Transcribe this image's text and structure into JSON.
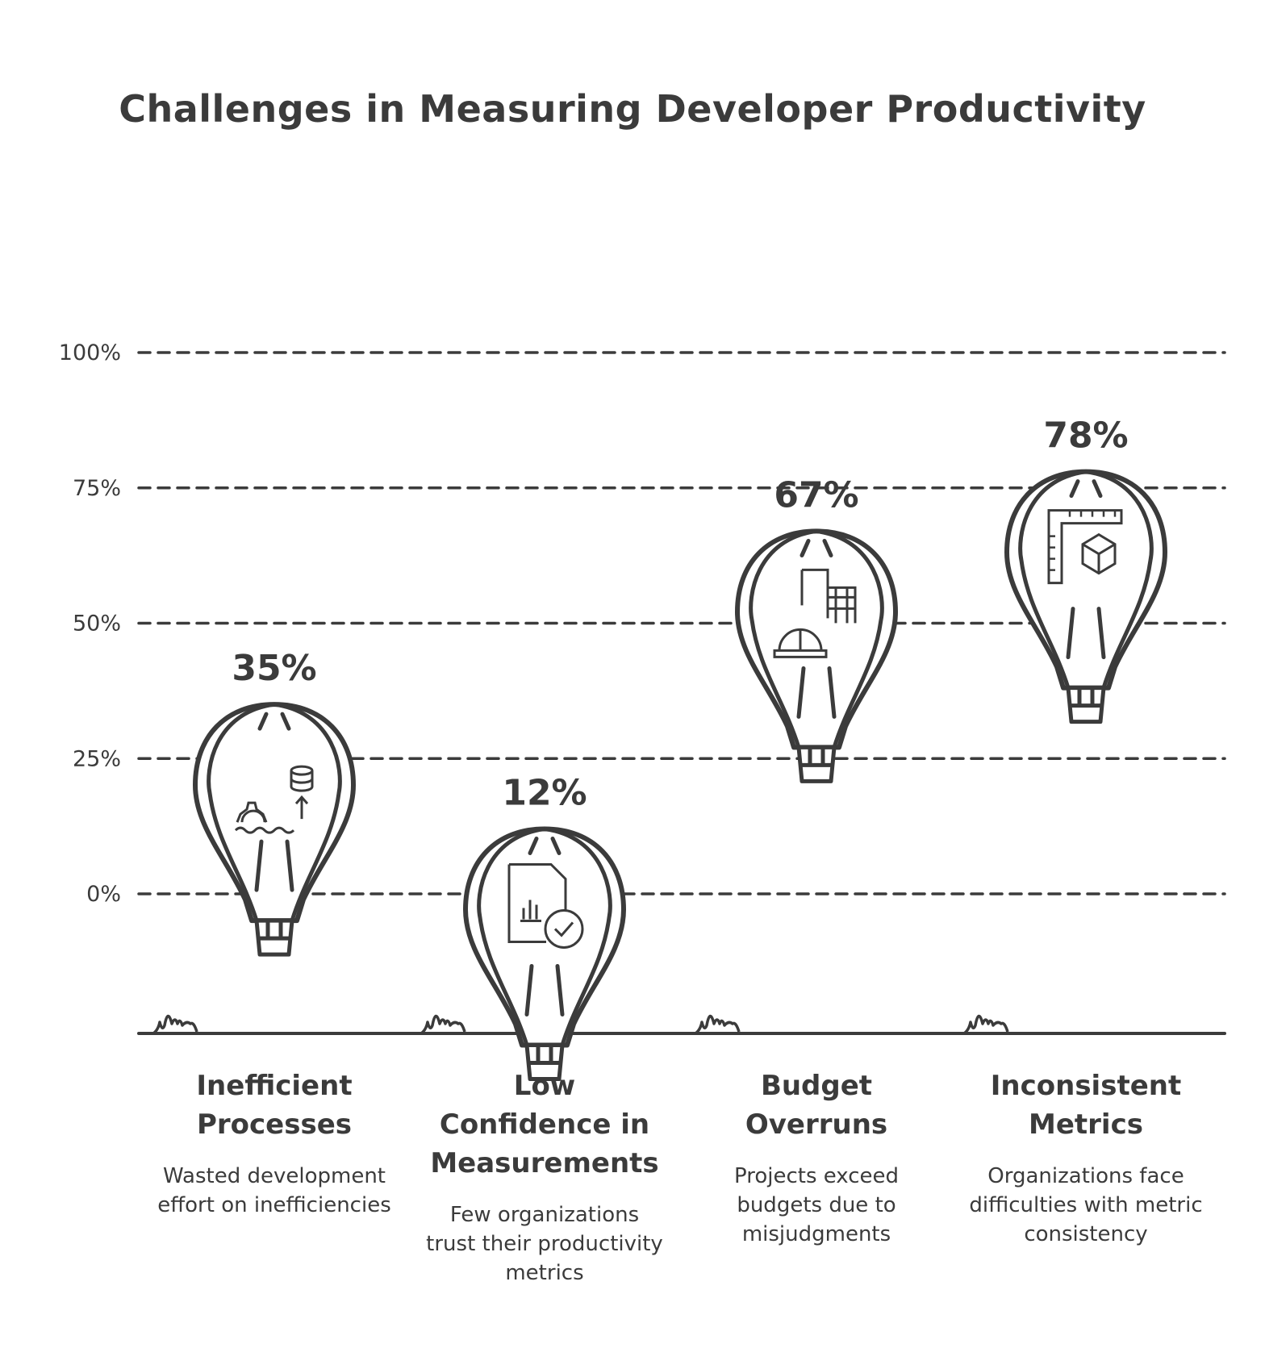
{
  "title": "Challenges in Measuring Developer Productivity",
  "chart_data": {
    "type": "bar",
    "title": "Challenges in Measuring Developer Productivity",
    "xlabel": "",
    "ylabel": "",
    "ylim": [
      0,
      100
    ],
    "yticks": [
      "0%",
      "25%",
      "50%",
      "75%",
      "100%"
    ],
    "grid": true,
    "categories": [
      "Inefficient Processes",
      "Low Confidence in Measurements",
      "Budget Overruns",
      "Inconsistent Metrics"
    ],
    "values": [
      35,
      12,
      67,
      78
    ],
    "value_labels": [
      "35%",
      "12%",
      "67%",
      "78%"
    ],
    "descriptions": [
      "Wasted development effort on inefficiencies",
      "Few organizations trust their productivity metrics",
      "Projects exceed budgets due to misjudgments",
      "Organizations face difficulties with metric consistency"
    ],
    "icons": [
      "gear-database-icon",
      "report-check-icon",
      "hardhat-building-icon",
      "ruler-cube-icon"
    ]
  },
  "colors": {
    "ink": "#3b3b3b",
    "background": "#ffffff"
  }
}
